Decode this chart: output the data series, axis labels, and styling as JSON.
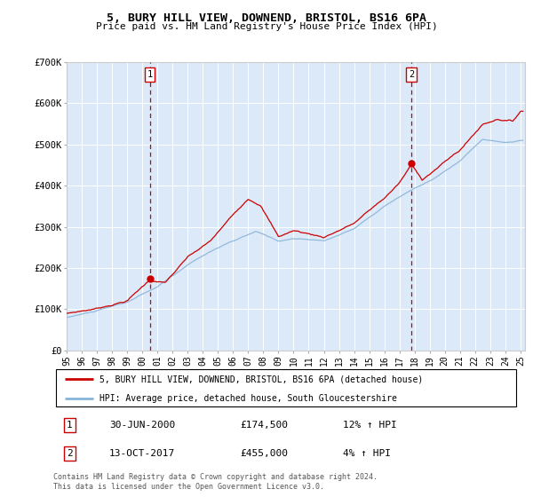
{
  "title": "5, BURY HILL VIEW, DOWNEND, BRISTOL, BS16 6PA",
  "subtitle": "Price paid vs. HM Land Registry's House Price Index (HPI)",
  "legend_line1": "5, BURY HILL VIEW, DOWNEND, BRISTOL, BS16 6PA (detached house)",
  "legend_line2": "HPI: Average price, detached house, South Gloucestershire",
  "annotation1_label": "1",
  "annotation1_date": "30-JUN-2000",
  "annotation1_price": "£174,500",
  "annotation1_hpi": "12% ↑ HPI",
  "annotation2_label": "2",
  "annotation2_date": "13-OCT-2017",
  "annotation2_price": "£455,000",
  "annotation2_hpi": "4% ↑ HPI",
  "footer": "Contains HM Land Registry data © Crown copyright and database right 2024.\nThis data is licensed under the Open Government Licence v3.0.",
  "ylim": [
    0,
    700000
  ],
  "yticks": [
    0,
    100000,
    200000,
    300000,
    400000,
    500000,
    600000,
    700000
  ],
  "ytick_labels": [
    "£0",
    "£100K",
    "£200K",
    "£300K",
    "£400K",
    "£500K",
    "£600K",
    "£700K"
  ],
  "xlim_start": 1995.0,
  "xlim_end": 2025.3,
  "plot_bg": "#dce9f8",
  "red_color": "#cc0000",
  "blue_color": "#89b4d9",
  "marker1_x": 2000.5,
  "marker1_y": 174500,
  "marker2_x": 2017.79,
  "marker2_y": 455000,
  "xtick_years": [
    1995,
    1996,
    1997,
    1998,
    1999,
    2000,
    2001,
    2002,
    2003,
    2004,
    2005,
    2006,
    2007,
    2008,
    2009,
    2010,
    2011,
    2012,
    2013,
    2014,
    2015,
    2016,
    2017,
    2018,
    2019,
    2020,
    2021,
    2022,
    2023,
    2024,
    2025
  ]
}
